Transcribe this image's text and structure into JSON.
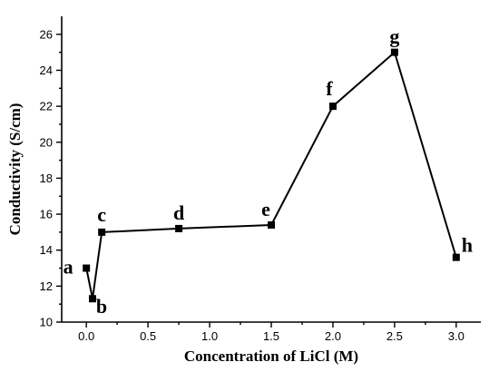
{
  "chart_data": {
    "type": "line",
    "title": "",
    "xlabel": "Concentration of LiCl (M)",
    "ylabel": "Conductivity (S/cm)",
    "xlim": [
      -0.2,
      3.2
    ],
    "ylim": [
      10,
      27
    ],
    "xticks": [
      0.0,
      0.5,
      1.0,
      1.5,
      2.0,
      2.5,
      3.0
    ],
    "xtick_labels": [
      "0.0",
      "0.5",
      "1.0",
      "1.5",
      "2.0",
      "2.5",
      "3.0"
    ],
    "yticks": [
      10,
      12,
      14,
      16,
      18,
      20,
      22,
      24,
      26
    ],
    "ytick_labels": [
      "10",
      "12",
      "14",
      "16",
      "18",
      "20",
      "22",
      "24",
      "26"
    ],
    "grid": false,
    "series": [
      {
        "points": [
          {
            "x": 0.0,
            "y": 13.0,
            "label": "a"
          },
          {
            "x": 0.05,
            "y": 11.3,
            "label": "b"
          },
          {
            "x": 0.125,
            "y": 15.0,
            "label": "c"
          },
          {
            "x": 0.75,
            "y": 15.2,
            "label": "d"
          },
          {
            "x": 1.5,
            "y": 15.4,
            "label": "e"
          },
          {
            "x": 2.0,
            "y": 22.0,
            "label": "f"
          },
          {
            "x": 2.5,
            "y": 25.0,
            "label": "g"
          },
          {
            "x": 3.0,
            "y": 13.6,
            "label": "h"
          }
        ]
      }
    ]
  }
}
